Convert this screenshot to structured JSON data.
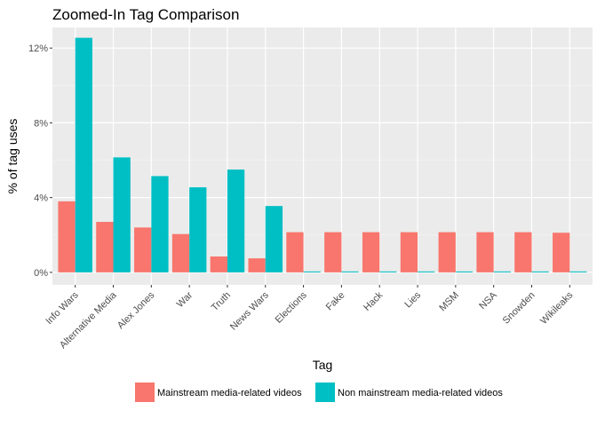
{
  "chart_data": {
    "type": "bar",
    "title": "Zoomed-In Tag Comparison",
    "xlabel": "Tag",
    "ylabel": "% of tag uses",
    "categories": [
      "Info Wars",
      "Alternative Media",
      "Alex Jones",
      "War",
      "Truth",
      "News Wars",
      "Elections",
      "Fake",
      "Hack",
      "Lies",
      "MSM",
      "NSA",
      "Snowden",
      "Wikileaks"
    ],
    "series": [
      {
        "name": "Mainstream media-related videos",
        "color": "#F8766D",
        "values": [
          3.8,
          2.7,
          2.4,
          2.05,
          0.85,
          0.75,
          2.15,
          2.15,
          2.15,
          2.15,
          2.15,
          2.15,
          2.15,
          2.12
        ]
      },
      {
        "name": "Non mainstream media-related videos",
        "color": "#00BFC4",
        "values": [
          12.55,
          6.15,
          5.15,
          4.55,
          5.5,
          3.55,
          0.05,
          0.05,
          0.05,
          0.05,
          0.05,
          0.05,
          0.05,
          0.05
        ]
      }
    ],
    "ylim": [
      0,
      13
    ],
    "yticks": [
      0,
      4,
      8,
      12
    ],
    "ytick_labels": [
      "0%",
      "4%",
      "8%",
      "12%"
    ],
    "grid": true,
    "legend_position": "bottom"
  }
}
